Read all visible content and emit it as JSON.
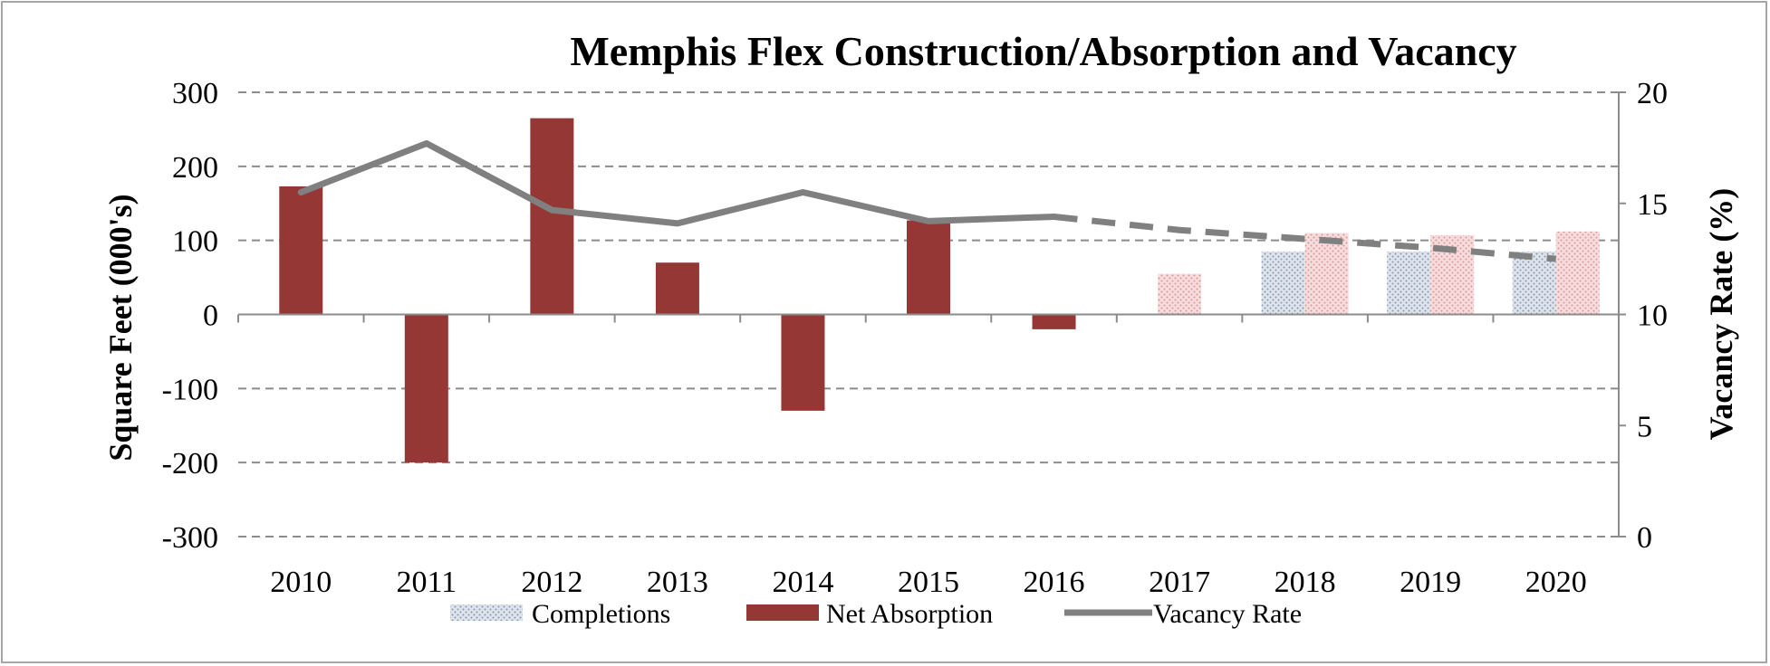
{
  "chart_data": {
    "type": "bar+line",
    "title": "Memphis Flex Construction/Absorption and Vacancy",
    "ylabel": "Square Feet (000's)",
    "y2label": "Vacancy Rate (%)",
    "categories": [
      "2010",
      "2011",
      "2012",
      "2013",
      "2014",
      "2015",
      "2016",
      "2017",
      "2018",
      "2019",
      "2020"
    ],
    "ylim": [
      -300,
      300
    ],
    "y_ticks": [
      300,
      200,
      100,
      0,
      -100,
      -200,
      -300
    ],
    "y2lim": [
      0,
      20
    ],
    "y2_ticks": [
      20,
      15,
      10,
      5,
      0
    ],
    "grid": true,
    "forecast_start": "2017",
    "series": [
      {
        "name": "Completions",
        "kind": "bar",
        "axis": "left",
        "values": [
          0,
          0,
          0,
          0,
          0,
          0,
          0,
          0,
          85,
          85,
          85
        ]
      },
      {
        "name": "Net Absorption",
        "kind": "bar",
        "axis": "left",
        "values": [
          173,
          -200,
          265,
          70,
          -130,
          127,
          -20,
          55,
          110,
          107,
          112
        ]
      },
      {
        "name": "Vacancy Rate",
        "kind": "line",
        "axis": "right",
        "values": [
          15.5,
          17.7,
          14.7,
          14.1,
          15.5,
          14.2,
          14.4,
          13.8,
          13.4,
          13.0,
          12.5
        ]
      }
    ],
    "legend": [
      "Completions",
      "Net Absorption",
      "Vacancy Rate"
    ],
    "legend_position": "bottom",
    "colors": {
      "completions": "#8496b0",
      "completions_bg": "#dfe4ec",
      "absorption": "#953735",
      "absorption_forecast": "#d99694",
      "absorption_forecast_bg": "#f6dcdc",
      "vacancy": "#808080",
      "grid": "#8c8c8c",
      "axis": "#8c8c8c",
      "text": "#000000"
    }
  }
}
